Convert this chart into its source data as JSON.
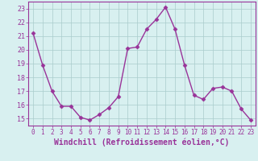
{
  "x": [
    0,
    1,
    2,
    3,
    4,
    5,
    6,
    7,
    8,
    9,
    10,
    11,
    12,
    13,
    14,
    15,
    16,
    17,
    18,
    19,
    20,
    21,
    22,
    23
  ],
  "y": [
    21.2,
    18.9,
    17.0,
    15.9,
    15.9,
    15.1,
    14.9,
    15.3,
    15.8,
    16.6,
    20.1,
    20.2,
    21.5,
    22.2,
    23.1,
    21.5,
    18.9,
    16.7,
    16.4,
    17.2,
    17.3,
    17.0,
    15.7,
    14.9
  ],
  "line_color": "#993399",
  "marker": "D",
  "markersize": 2.5,
  "linewidth": 1.0,
  "xlabel": "Windchill (Refroidissement éolien,°C)",
  "xlabel_fontsize": 7,
  "ylim": [
    14.5,
    23.5
  ],
  "yticks": [
    15,
    16,
    17,
    18,
    19,
    20,
    21,
    22,
    23
  ],
  "xticks": [
    0,
    1,
    2,
    3,
    4,
    5,
    6,
    7,
    8,
    9,
    10,
    11,
    12,
    13,
    14,
    15,
    16,
    17,
    18,
    19,
    20,
    21,
    22,
    23
  ],
  "xtick_fontsize": 5.5,
  "ytick_fontsize": 6.0,
  "bg_color": "#d8f0f0",
  "grid_color": "#aacccc",
  "spine_color": "#993399"
}
